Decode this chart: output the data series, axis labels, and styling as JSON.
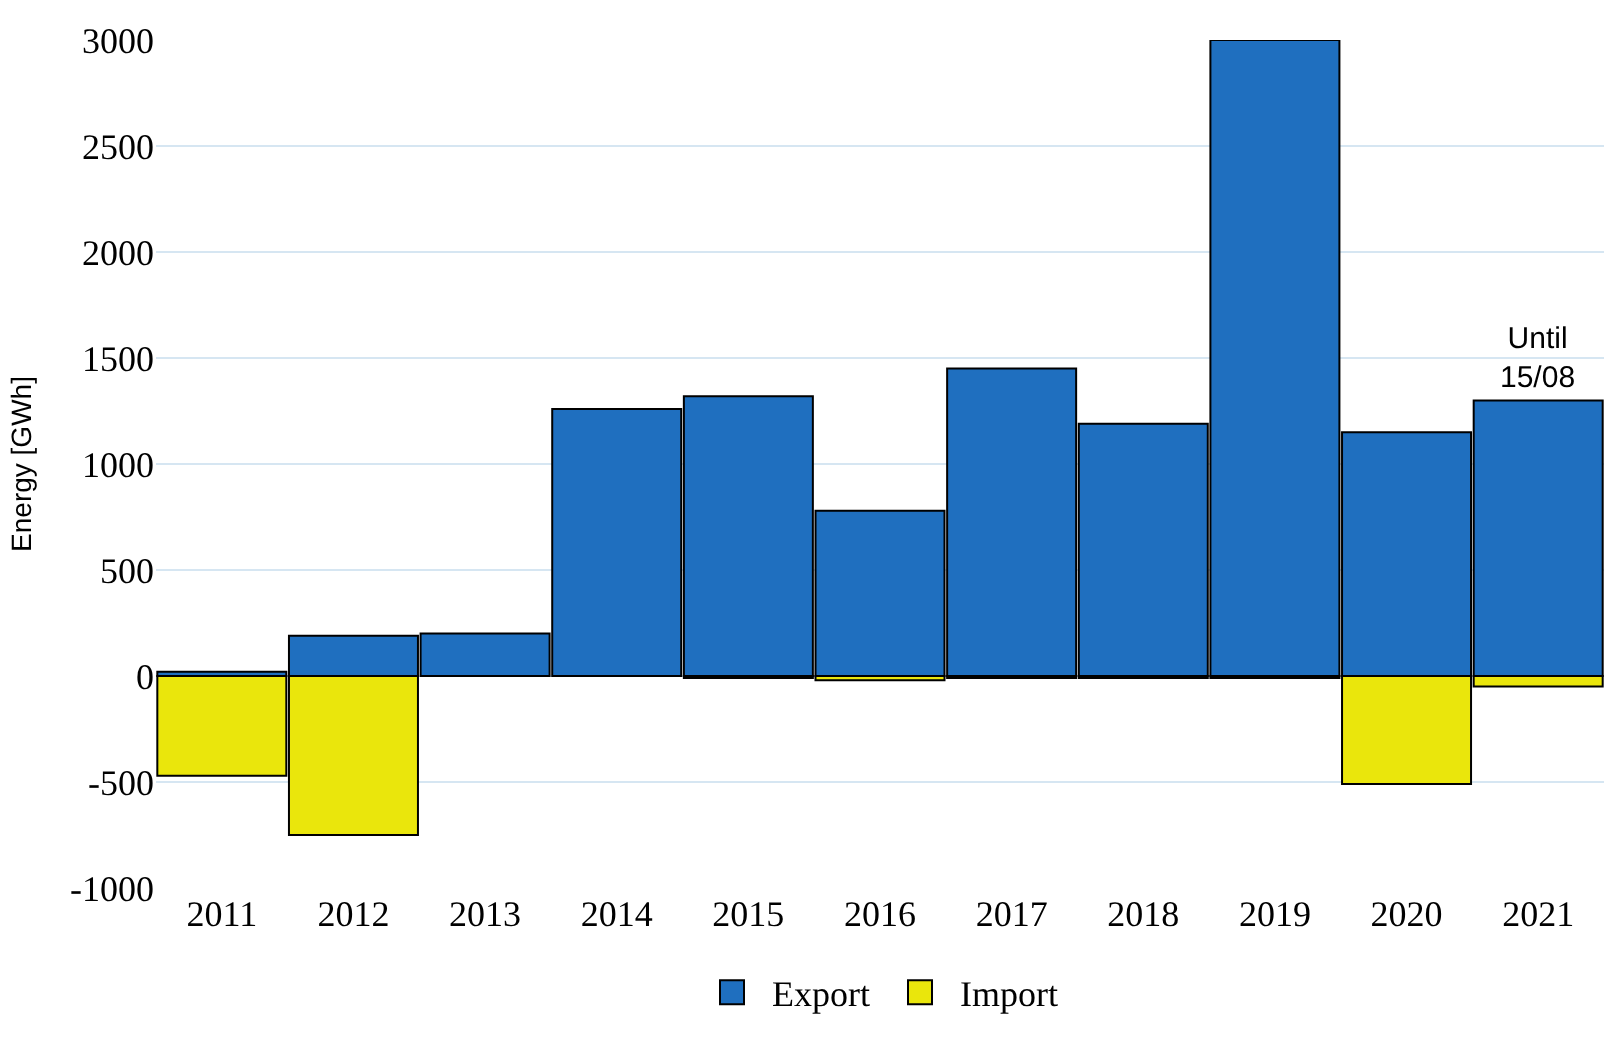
{
  "chart_data": {
    "type": "bar",
    "ylabel": "Energy [GWh]",
    "stacked": true,
    "categories": [
      "2011",
      "2012",
      "2013",
      "2014",
      "2015",
      "2016",
      "2017",
      "2018",
      "2019",
      "2020",
      "2021"
    ],
    "series": [
      {
        "name": "Export",
        "color": "#1f6fbf",
        "values": [
          20,
          190,
          200,
          1260,
          1320,
          780,
          1450,
          1190,
          3000,
          1150,
          1300
        ]
      },
      {
        "name": "Import",
        "color": "#eae60c",
        "values": [
          -470,
          -750,
          null,
          null,
          -10,
          -20,
          -10,
          -10,
          -10,
          -510,
          -50
        ]
      }
    ],
    "ylim": [
      -1000,
      3000
    ],
    "yticks": [
      -1000,
      -500,
      0,
      500,
      1000,
      1500,
      2000,
      2500,
      3000
    ],
    "grid": "y",
    "legend": "bottom",
    "annotations": [
      {
        "text": "Until 15/08",
        "x": "2021",
        "y": 1300
      }
    ]
  }
}
